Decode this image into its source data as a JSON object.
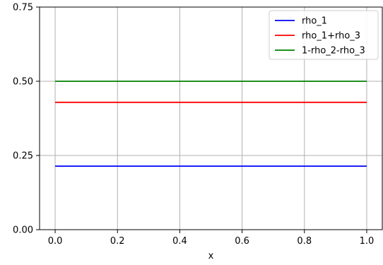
{
  "chart_data": {
    "type": "line",
    "title": "",
    "xlabel": "x",
    "ylabel": "",
    "xlim": [
      -0.05,
      1.05
    ],
    "ylim": [
      0,
      0.75
    ],
    "grid": true,
    "legend_position": "top-right",
    "x_ticks": [
      {
        "value": 0.0,
        "label": "0.0"
      },
      {
        "value": 0.2,
        "label": "0.2"
      },
      {
        "value": 0.4,
        "label": "0.4"
      },
      {
        "value": 0.6,
        "label": "0.6"
      },
      {
        "value": 0.8,
        "label": "0.8"
      },
      {
        "value": 1.0,
        "label": "1.0"
      }
    ],
    "y_ticks": [
      {
        "value": 0.0,
        "label": "0.00"
      },
      {
        "value": 0.25,
        "label": "0.25"
      },
      {
        "value": 0.5,
        "label": "0.50"
      },
      {
        "value": 0.75,
        "label": "0.75"
      }
    ],
    "series": [
      {
        "name": "rho_1",
        "color": "#0000ff",
        "x": [
          0,
          1
        ],
        "y": [
          0.214,
          0.214
        ]
      },
      {
        "name": "rho_1+rho_3",
        "color": "#ff0000",
        "x": [
          0,
          1
        ],
        "y": [
          0.429,
          0.429
        ]
      },
      {
        "name": "1-rho_2-rho_3",
        "color": "#008000",
        "x": [
          0,
          1
        ],
        "y": [
          0.5,
          0.5
        ]
      }
    ]
  }
}
